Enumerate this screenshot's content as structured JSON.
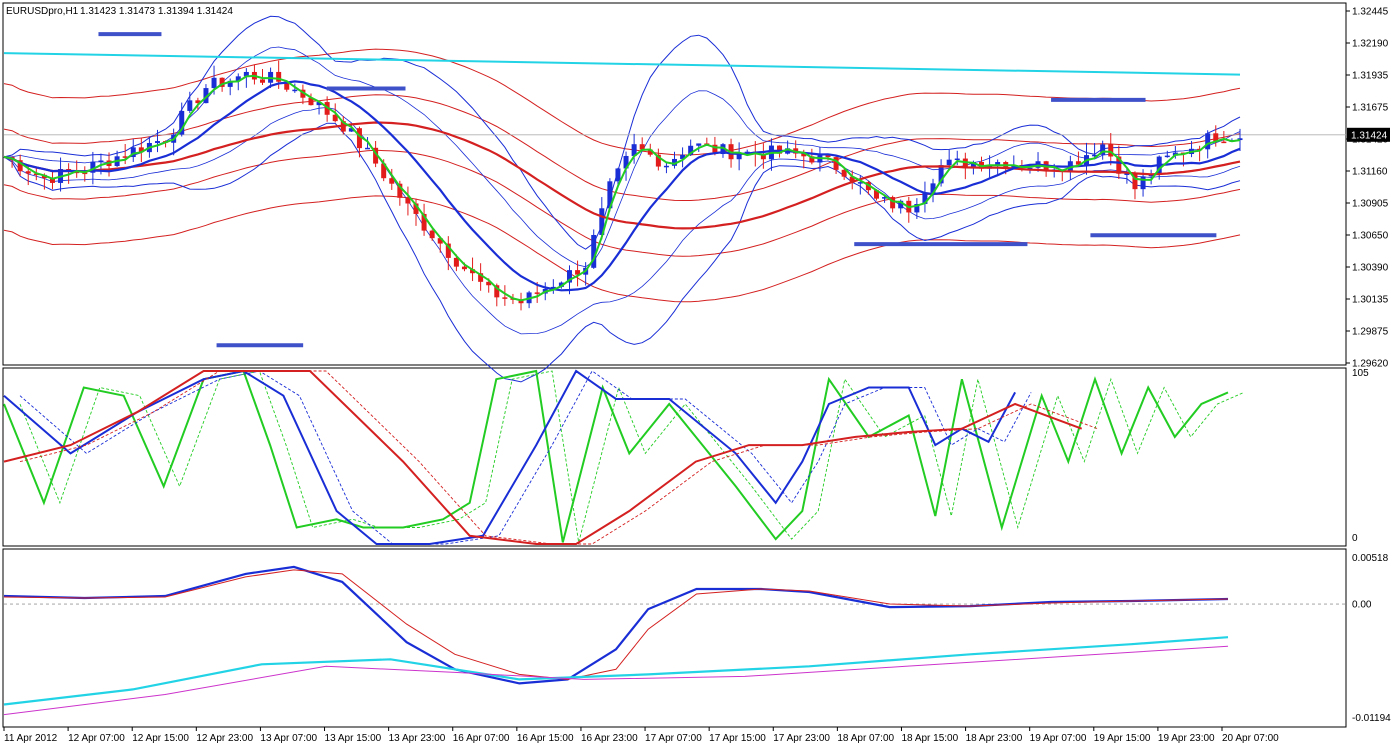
{
  "header": {
    "symbol": "EURUSDpro,H1",
    "ohlc": "1.31423 1.31473 1.31394 1.31424"
  },
  "colors": {
    "bull_candle": "#1a2ed6",
    "bear_candle": "#e21b1b",
    "fast_ma": "#22cc22",
    "mid_ma": "#1a2ed6",
    "slow_ma": "#d42020",
    "long_ma": "#22d3e6",
    "level_marker": "#3f51c9",
    "macd_signal": "#cc33cc"
  },
  "chart_data": [
    {
      "type": "candlestick",
      "panel": "price",
      "ylim": [
        1.2962,
        1.3245
      ],
      "y_ticks": [
        "1.32445",
        "1.32190",
        "1.31935",
        "1.31675",
        "1.31420",
        "1.31160",
        "1.30905",
        "1.30650",
        "1.30390",
        "1.30135",
        "1.29875",
        "1.29620"
      ],
      "current_price": "1.31424",
      "x_ticks": [
        "11 Apr 2012",
        "12 Apr 07:00",
        "12 Apr 15:00",
        "12 Apr 23:00",
        "13 Apr 07:00",
        "13 Apr 15:00",
        "13 Apr 23:00",
        "16 Apr 07:00",
        "16 Apr 15:00",
        "16 Apr 23:00",
        "17 Apr 07:00",
        "17 Apr 15:00",
        "17 Apr 23:00",
        "18 Apr 07:00",
        "18 Apr 15:00",
        "18 Apr 23:00",
        "19 Apr 07:00",
        "19 Apr 15:00",
        "19 Apr 23:00",
        "20 Apr 07:00"
      ],
      "close_path": [
        [
          0,
          1.3125
        ],
        [
          5,
          1.3108
        ],
        [
          10,
          1.3115
        ],
        [
          15,
          1.3128
        ],
        [
          20,
          1.314
        ],
        [
          25,
          1.318
        ],
        [
          30,
          1.319
        ],
        [
          34,
          1.3185
        ],
        [
          38,
          1.317
        ],
        [
          42,
          1.315
        ],
        [
          46,
          1.312
        ],
        [
          50,
          1.3085
        ],
        [
          55,
          1.305
        ],
        [
          60,
          1.3018
        ],
        [
          64,
          1.301
        ],
        [
          68,
          1.3025
        ],
        [
          72,
          1.304
        ],
        [
          75,
          1.31
        ],
        [
          78,
          1.3132
        ],
        [
          82,
          1.312
        ],
        [
          85,
          1.3135
        ],
        [
          88,
          1.313
        ],
        [
          92,
          1.3128
        ],
        [
          96,
          1.3128
        ],
        [
          100,
          1.3125
        ],
        [
          104,
          1.3115
        ],
        [
          108,
          1.309
        ],
        [
          112,
          1.3085
        ],
        [
          116,
          1.3118
        ],
        [
          120,
          1.3121
        ],
        [
          124,
          1.3121
        ],
        [
          128,
          1.3118
        ],
        [
          132,
          1.312
        ],
        [
          136,
          1.3135
        ],
        [
          140,
          1.31
        ],
        [
          143,
          1.312
        ],
        [
          146,
          1.313
        ],
        [
          150,
          1.3142
        ],
        [
          153,
          1.3142
        ]
      ],
      "level_markers": [
        {
          "y": 1.3222,
          "x0": 12,
          "x1": 20
        },
        {
          "y": 1.3179,
          "x0": 41,
          "x1": 51
        },
        {
          "y": 1.317,
          "x0": 133,
          "x1": 145
        },
        {
          "y": 1.3063,
          "x0": 138,
          "x1": 154
        },
        {
          "y": 1.3056,
          "x0": 108,
          "x1": 130
        },
        {
          "y": 1.2976,
          "x0": 27,
          "x1": 38
        }
      ]
    },
    {
      "type": "line",
      "panel": "oscillator",
      "ylim": [
        0,
        105
      ],
      "y_ticks": [
        "105",
        "0"
      ],
      "series": [
        {
          "key": "green",
          "values": [
            [
              0,
              85
            ],
            [
              3,
              25
            ],
            [
              6,
              95
            ],
            [
              9,
              90
            ],
            [
              12,
              35
            ],
            [
              15,
              100
            ],
            [
              18,
              105
            ],
            [
              20,
              60
            ],
            [
              22,
              10
            ],
            [
              25,
              15
            ],
            [
              27,
              10
            ],
            [
              30,
              10
            ],
            [
              33,
              15
            ],
            [
              35,
              25
            ],
            [
              37,
              100
            ],
            [
              40,
              105
            ],
            [
              42,
              1
            ],
            [
              45,
              95
            ],
            [
              47,
              55
            ],
            [
              50,
              85
            ],
            [
              52,
              65
            ],
            [
              55,
              35
            ],
            [
              58,
              3
            ],
            [
              60,
              20
            ],
            [
              62,
              100
            ],
            [
              65,
              65
            ],
            [
              68,
              78
            ],
            [
              70,
              17
            ],
            [
              72,
              100
            ],
            [
              75,
              10
            ],
            [
              78,
              90
            ],
            [
              80,
              50
            ],
            [
              82,
              100
            ],
            [
              84,
              55
            ],
            [
              86,
              95
            ],
            [
              88,
              65
            ],
            [
              90,
              85
            ],
            [
              92,
              92
            ]
          ]
        },
        {
          "key": "blue",
          "values": [
            [
              0,
              90
            ],
            [
              5,
              55
            ],
            [
              10,
              80
            ],
            [
              15,
              100
            ],
            [
              18,
              105
            ],
            [
              21,
              90
            ],
            [
              25,
              20
            ],
            [
              28,
              0
            ],
            [
              32,
              0
            ],
            [
              36,
              5
            ],
            [
              40,
              60
            ],
            [
              43,
              105
            ],
            [
              46,
              88
            ],
            [
              50,
              88
            ],
            [
              55,
              55
            ],
            [
              58,
              25
            ],
            [
              60,
              50
            ],
            [
              62,
              85
            ],
            [
              65,
              95
            ],
            [
              68,
              95
            ],
            [
              70,
              60
            ],
            [
              72,
              70
            ],
            [
              74,
              62
            ],
            [
              76,
              92
            ]
          ]
        },
        {
          "key": "red",
          "values": [
            [
              0,
              50
            ],
            [
              5,
              60
            ],
            [
              10,
              80
            ],
            [
              15,
              105
            ],
            [
              23,
              105
            ],
            [
              30,
              50
            ],
            [
              35,
              5
            ],
            [
              40,
              0
            ],
            [
              43,
              0
            ],
            [
              47,
              20
            ],
            [
              52,
              50
            ],
            [
              56,
              60
            ],
            [
              60,
              60
            ],
            [
              64,
              65
            ],
            [
              68,
              68
            ],
            [
              72,
              70
            ],
            [
              76,
              85
            ],
            [
              81,
              70
            ]
          ]
        }
      ]
    },
    {
      "type": "line",
      "panel": "macd",
      "ylim": [
        -0.01194,
        0.00518
      ],
      "y_ticks": [
        "0.00518",
        "0.00",
        "-0.01194"
      ],
      "series": [
        {
          "key": "blue",
          "values": [
            [
              0,
              0.0008
            ],
            [
              5,
              0.0006
            ],
            [
              10,
              0.0008
            ],
            [
              15,
              0.003
            ],
            [
              18,
              0.0037
            ],
            [
              21,
              0.0022
            ],
            [
              25,
              -0.0038
            ],
            [
              28,
              -0.0065
            ],
            [
              32,
              -0.0079
            ],
            [
              35,
              -0.0075
            ],
            [
              38,
              -0.0045
            ],
            [
              40,
              -0.0005
            ],
            [
              43,
              0.0015
            ],
            [
              47,
              0.0015
            ],
            [
              50,
              0.0012
            ],
            [
              55,
              -0.0003
            ],
            [
              60,
              -0.0002
            ],
            [
              65,
              0.0002
            ],
            [
              70,
              0.0003
            ],
            [
              76,
              0.0005
            ]
          ]
        },
        {
          "key": "red",
          "values": [
            [
              0,
              0.0007
            ],
            [
              5,
              0.0006
            ],
            [
              10,
              0.0007
            ],
            [
              15,
              0.0027
            ],
            [
              18,
              0.0034
            ],
            [
              21,
              0.003
            ],
            [
              25,
              -0.002
            ],
            [
              28,
              -0.005
            ],
            [
              32,
              -0.007
            ],
            [
              35,
              -0.0075
            ],
            [
              38,
              -0.0065
            ],
            [
              40,
              -0.0025
            ],
            [
              43,
              0.001
            ],
            [
              47,
              0.0015
            ],
            [
              50,
              0.0013
            ],
            [
              55,
              0
            ],
            [
              60,
              -0.0002
            ],
            [
              65,
              0.0001
            ],
            [
              70,
              0.0003
            ],
            [
              76,
              0.0005
            ]
          ]
        },
        {
          "key": "cyan",
          "values": [
            [
              0,
              -0.01
            ],
            [
              8,
              -0.0085
            ],
            [
              16,
              -0.006
            ],
            [
              24,
              -0.0055
            ],
            [
              32,
              -0.0075
            ],
            [
              40,
              -0.007
            ],
            [
              50,
              -0.0062
            ],
            [
              60,
              -0.005
            ],
            [
              70,
              -0.004
            ],
            [
              76,
              -0.0033
            ]
          ]
        },
        {
          "key": "magenta",
          "values": [
            [
              0,
              -0.011
            ],
            [
              10,
              -0.009
            ],
            [
              20,
              -0.0062
            ],
            [
              28,
              -0.0068
            ],
            [
              36,
              -0.0075
            ],
            [
              46,
              -0.0072
            ],
            [
              56,
              -0.0062
            ],
            [
              66,
              -0.0052
            ],
            [
              76,
              -0.0042
            ]
          ]
        }
      ]
    }
  ]
}
